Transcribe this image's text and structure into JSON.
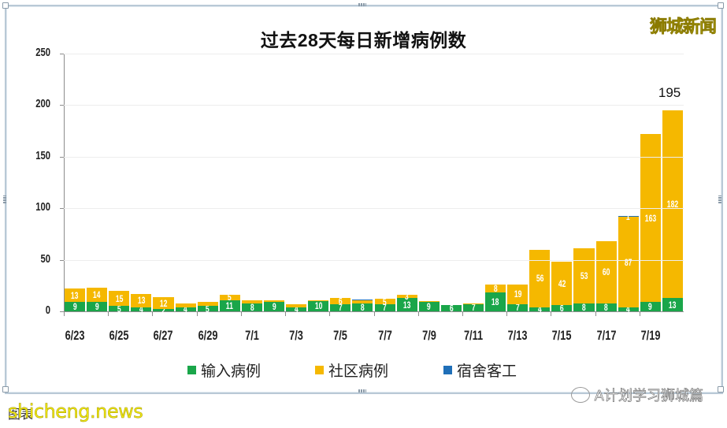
{
  "header": {
    "title": "过去28天每日新增病例数",
    "brand": "狮城新闻"
  },
  "colors": {
    "imported": "#1aa64a",
    "community": "#f5b800",
    "dormitory": "#1f6fb8"
  },
  "legend": [
    {
      "label": "输入病例",
      "color": "#1aa64a"
    },
    {
      "label": "社区病例",
      "color": "#f5b800"
    },
    {
      "label": "宿舍客工",
      "color": "#1f6fb8"
    }
  ],
  "footer": {
    "caption": "图表",
    "site": "shicheng.news",
    "wechat": "A计划学习狮城篇"
  },
  "chart_data": {
    "type": "bar",
    "stacked": true,
    "title": "过去28天每日新增病例数",
    "xlabel": "",
    "ylabel": "",
    "ylim": [
      0,
      250
    ],
    "yticks": [
      0,
      50,
      100,
      150,
      200,
      250
    ],
    "grid": true,
    "legend_position": "bottom",
    "categories": [
      "6/23",
      "6/24",
      "6/25",
      "6/26",
      "6/27",
      "6/28",
      "6/29",
      "6/30",
      "7/1",
      "7/2",
      "7/3",
      "7/4",
      "7/5",
      "7/6",
      "7/7",
      "7/8",
      "7/9",
      "7/10",
      "7/11",
      "7/12",
      "7/13",
      "7/14",
      "7/15",
      "7/16",
      "7/17",
      "7/18",
      "7/19",
      "7/20"
    ],
    "xtick_labels": [
      "6/23",
      "6/25",
      "6/27",
      "6/29",
      "7/1",
      "7/3",
      "7/5",
      "7/7",
      "7/9",
      "7/11",
      "7/13",
      "7/15",
      "7/17",
      "7/19"
    ],
    "series": [
      {
        "name": "输入病例",
        "values": [
          9,
          9,
          5,
          4,
          2,
          4,
          5,
          11,
          8,
          9,
          4,
          10,
          7,
          8,
          7,
          13,
          9,
          6,
          7,
          18,
          7,
          4,
          6,
          8,
          8,
          4,
          9,
          13
        ]
      },
      {
        "name": "社区病例",
        "values": [
          13,
          14,
          15,
          13,
          12,
          4,
          4,
          5,
          3,
          2,
          3,
          1,
          6,
          2,
          5,
          3,
          1,
          0,
          1,
          8,
          19,
          56,
          42,
          53,
          60,
          87,
          163,
          182
        ]
      },
      {
        "name": "宿舍客工",
        "values": [
          0,
          0,
          0,
          0,
          0,
          0,
          0,
          0,
          0,
          0,
          0,
          0,
          0,
          1,
          0,
          0,
          0,
          0,
          0,
          0,
          0,
          0,
          0,
          0,
          0,
          1,
          0,
          0
        ]
      }
    ],
    "labels": {
      "imported": [
        "9",
        "9",
        "5",
        "4",
        "2",
        "4",
        "5",
        "11",
        "8",
        "9",
        "4",
        "10",
        "7",
        "8",
        "7",
        "13",
        "9",
        "6",
        "7",
        "18",
        "7",
        "4",
        "6",
        "8",
        "8",
        "4",
        "9",
        "13"
      ],
      "community": [
        "13",
        "14",
        "15",
        "13",
        "12",
        "",
        "",
        "5",
        "",
        "",
        "",
        "",
        "6",
        "",
        "5",
        "3",
        "",
        "",
        "",
        "8",
        "19",
        "56",
        "42",
        "53",
        "60",
        "87",
        "163",
        "182"
      ],
      "dormitory": [
        "",
        "",
        "",
        "",
        "",
        "",
        "",
        "",
        "",
        "",
        "",
        "",
        "",
        "",
        "",
        "",
        "",
        "",
        "",
        "",
        "",
        "",
        "",
        "",
        "",
        "1",
        "",
        ""
      ]
    },
    "annotations": [
      {
        "category": "7/20",
        "text": "195"
      }
    ]
  }
}
